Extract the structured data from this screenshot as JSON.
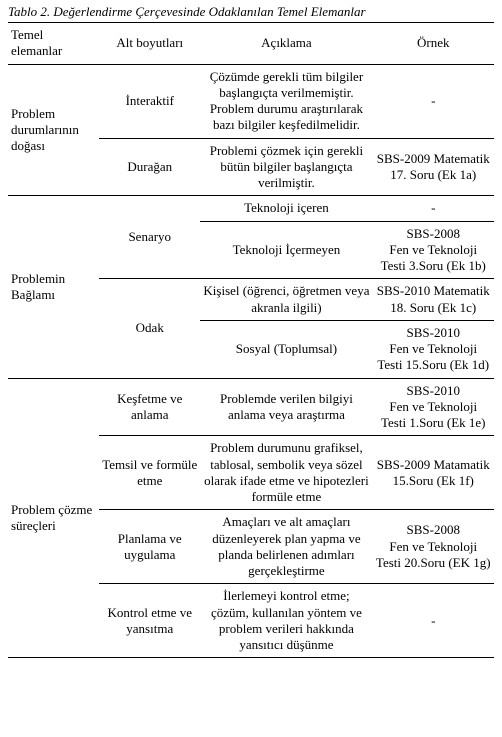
{
  "caption": "Tablo 2. Değerlendirme Çerçevesinde Odaklanılan Temel Elemanlar",
  "headers": {
    "c1": "Temel elemanlar",
    "c2": "Alt boyutları",
    "c3": "Açıklama",
    "c4": "Örnek"
  },
  "rows": {
    "g1": {
      "label": "Problem durumlarının doğası",
      "r1": {
        "sub": "İnteraktif",
        "desc": "Çözümde gerekli tüm bilgiler başlangıçta verilmemiştir. Problem durumu araştırılarak bazı bilgiler keşfedilmelidir.",
        "ex": "-"
      },
      "r2": {
        "sub": "Durağan",
        "desc": "Problemi çözmek için gerekli bütün bilgiler başlangıçta verilmiştir.",
        "ex": "SBS-2009 Matematik 17. Soru (Ek 1a)"
      }
    },
    "g2": {
      "label": "Problemin Bağlamı",
      "senaryo": {
        "sub": "Senaryo",
        "r1": {
          "desc": "Teknoloji içeren",
          "ex": "-"
        },
        "r2": {
          "desc": "Teknoloji İçermeyen",
          "ex": "SBS-2008\nFen ve Teknoloji Testi 3.Soru (Ek 1b)"
        }
      },
      "odak": {
        "sub": "Odak",
        "r1": {
          "desc": "Kişisel (öğrenci, öğretmen veya akranla ilgili)",
          "ex": "SBS-2010 Matematik 18. Soru (Ek 1c)"
        },
        "r2": {
          "desc": "Sosyal (Toplumsal)",
          "ex": "SBS-2010\nFen ve Teknoloji Testi 15.Soru (Ek 1d)"
        }
      }
    },
    "g3": {
      "label": "Problem çözme süreçleri",
      "r1": {
        "sub": "Keşfetme ve anlama",
        "desc": "Problemde verilen bilgiyi anlama veya araştırma",
        "ex": "SBS-2010\nFen ve Teknoloji Testi 1.Soru (Ek 1e)"
      },
      "r2": {
        "sub": "Temsil ve formüle etme",
        "desc": "Problem durumunu grafiksel, tablosal, sembolik veya sözel olarak ifade etme ve hipotezleri formüle etme",
        "ex": "SBS-2009 Matamatik 15.Soru (Ek 1f)"
      },
      "r3": {
        "sub": "Planlama ve uygulama",
        "desc": "Amaçları ve alt amaçları düzenleyerek plan yapma ve planda belirlenen adımları gerçekleştirme",
        "ex": "SBS-2008\nFen ve Teknoloji Testi 20.Soru (EK 1g)"
      },
      "r4": {
        "sub": "Kontrol etme ve yansıtma",
        "desc": "İlerlemeyi kontrol etme; çözüm, kullanılan yöntem ve problem verileri hakkında yansıtıcı düşünme",
        "ex": "-"
      }
    }
  }
}
